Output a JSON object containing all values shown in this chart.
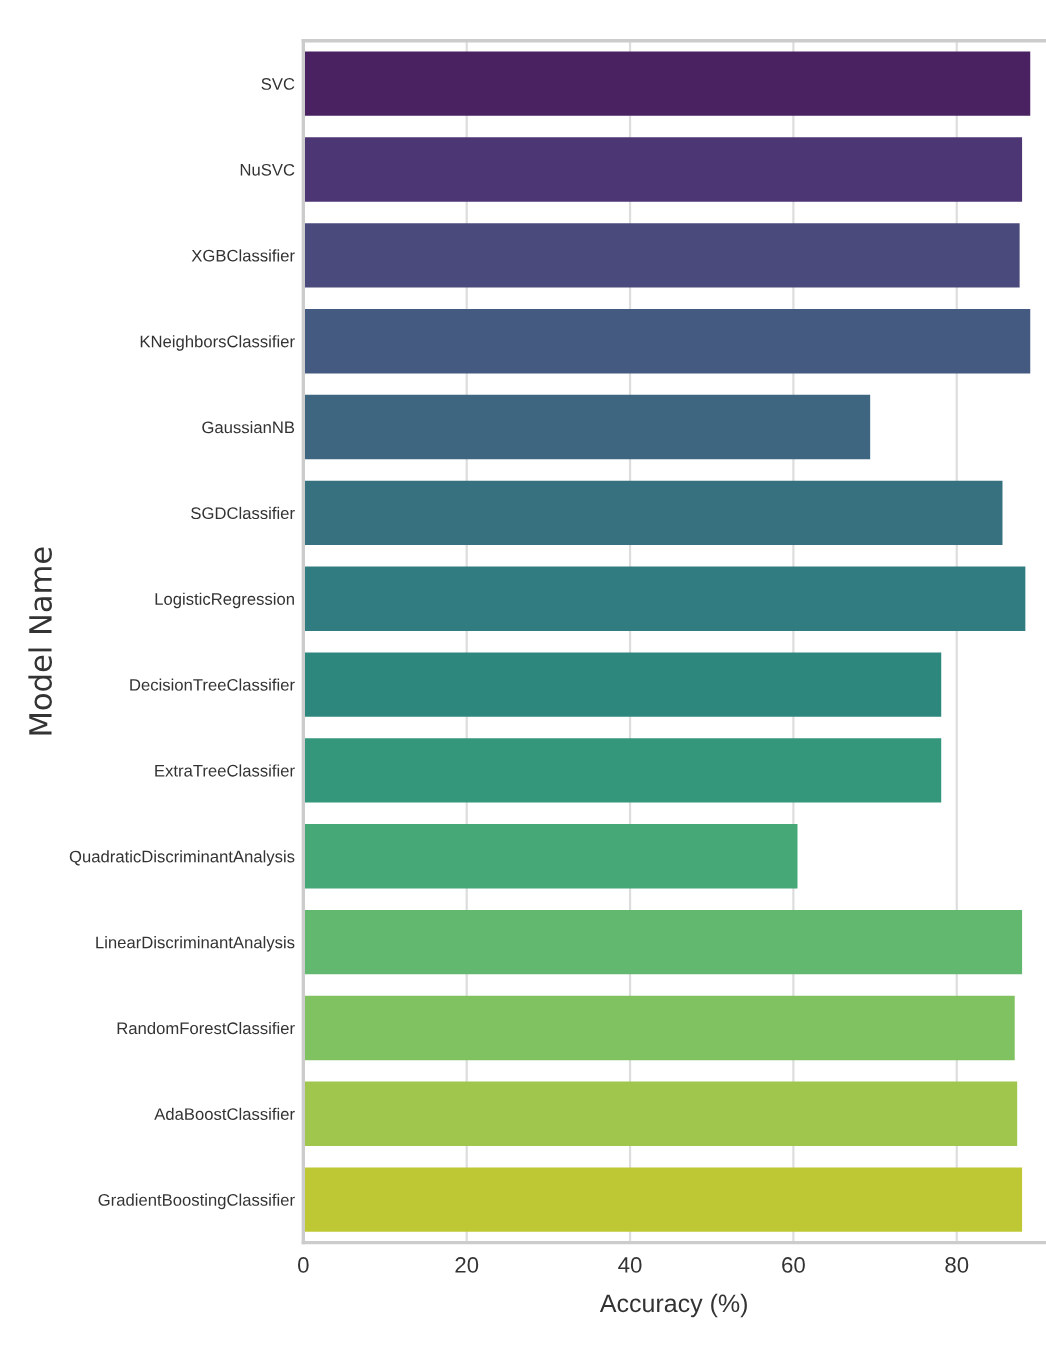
{
  "chart_data": {
    "type": "bar",
    "orientation": "horizontal",
    "xlabel": "Accuracy (%)",
    "ylabel": "Model Name",
    "categories": [
      "SVC",
      "NuSVC",
      "XGBClassifier",
      "KNeighborsClassifier",
      "GaussianNB",
      "SGDClassifier",
      "LogisticRegression",
      "DecisionTreeClassifier",
      "ExtraTreeClassifier",
      "QuadraticDiscriminantAnalysis",
      "LinearDiscriminantAnalysis",
      "RandomForestClassifier",
      "AdaBoostClassifier",
      "GradientBoostingClassifier"
    ],
    "values": [
      89.0,
      88.0,
      87.7,
      89.0,
      69.4,
      85.6,
      88.4,
      78.1,
      78.1,
      60.5,
      88.0,
      87.1,
      87.4,
      88.0
    ],
    "colors": [
      "#4a2262",
      "#4c3674",
      "#4b4a7c",
      "#455a80",
      "#3e6680",
      "#37707e",
      "#317c80",
      "#2e877c",
      "#34967a",
      "#46a877",
      "#63b870",
      "#80c262",
      "#a0c64e",
      "#bec835"
    ],
    "xlim": [
      0,
      90.8
    ],
    "xticks": [
      0,
      20,
      40,
      60,
      80
    ],
    "grid": "x",
    "legend": false
  }
}
